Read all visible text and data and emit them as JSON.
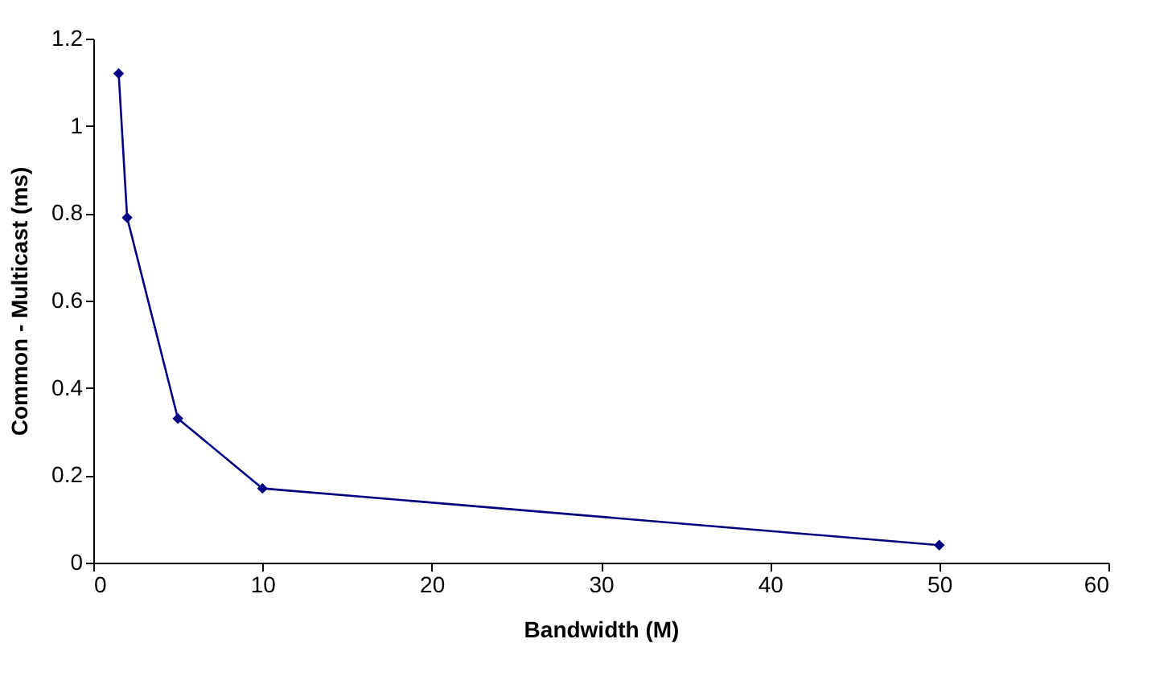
{
  "chart_data": {
    "type": "line",
    "xlabel": "Bandwidth (M)",
    "ylabel": "Common - Multicast (ms)",
    "x": [
      1.5,
      2,
      5,
      10,
      50
    ],
    "series": [
      {
        "color": "#000080",
        "values": [
          1.12,
          0.79,
          0.33,
          0.17,
          0.04
        ]
      }
    ],
    "xlim": [
      0,
      60
    ],
    "xticks": [
      0,
      10,
      20,
      30,
      40,
      50,
      60
    ],
    "ylim": [
      0,
      1.2
    ],
    "yticks": [
      0,
      {
        "value": 0.2,
        "label": "0.2"
      },
      {
        "value": 0.4,
        "label": "0.4"
      },
      {
        "value": 0.6,
        "label": "0.6"
      },
      {
        "value": 0.8,
        "label": "0.8"
      },
      1,
      {
        "value": 1.2,
        "label": "1.2"
      }
    ],
    "grid": false,
    "legend": false,
    "marker": "diamond",
    "line_style": "solid"
  }
}
